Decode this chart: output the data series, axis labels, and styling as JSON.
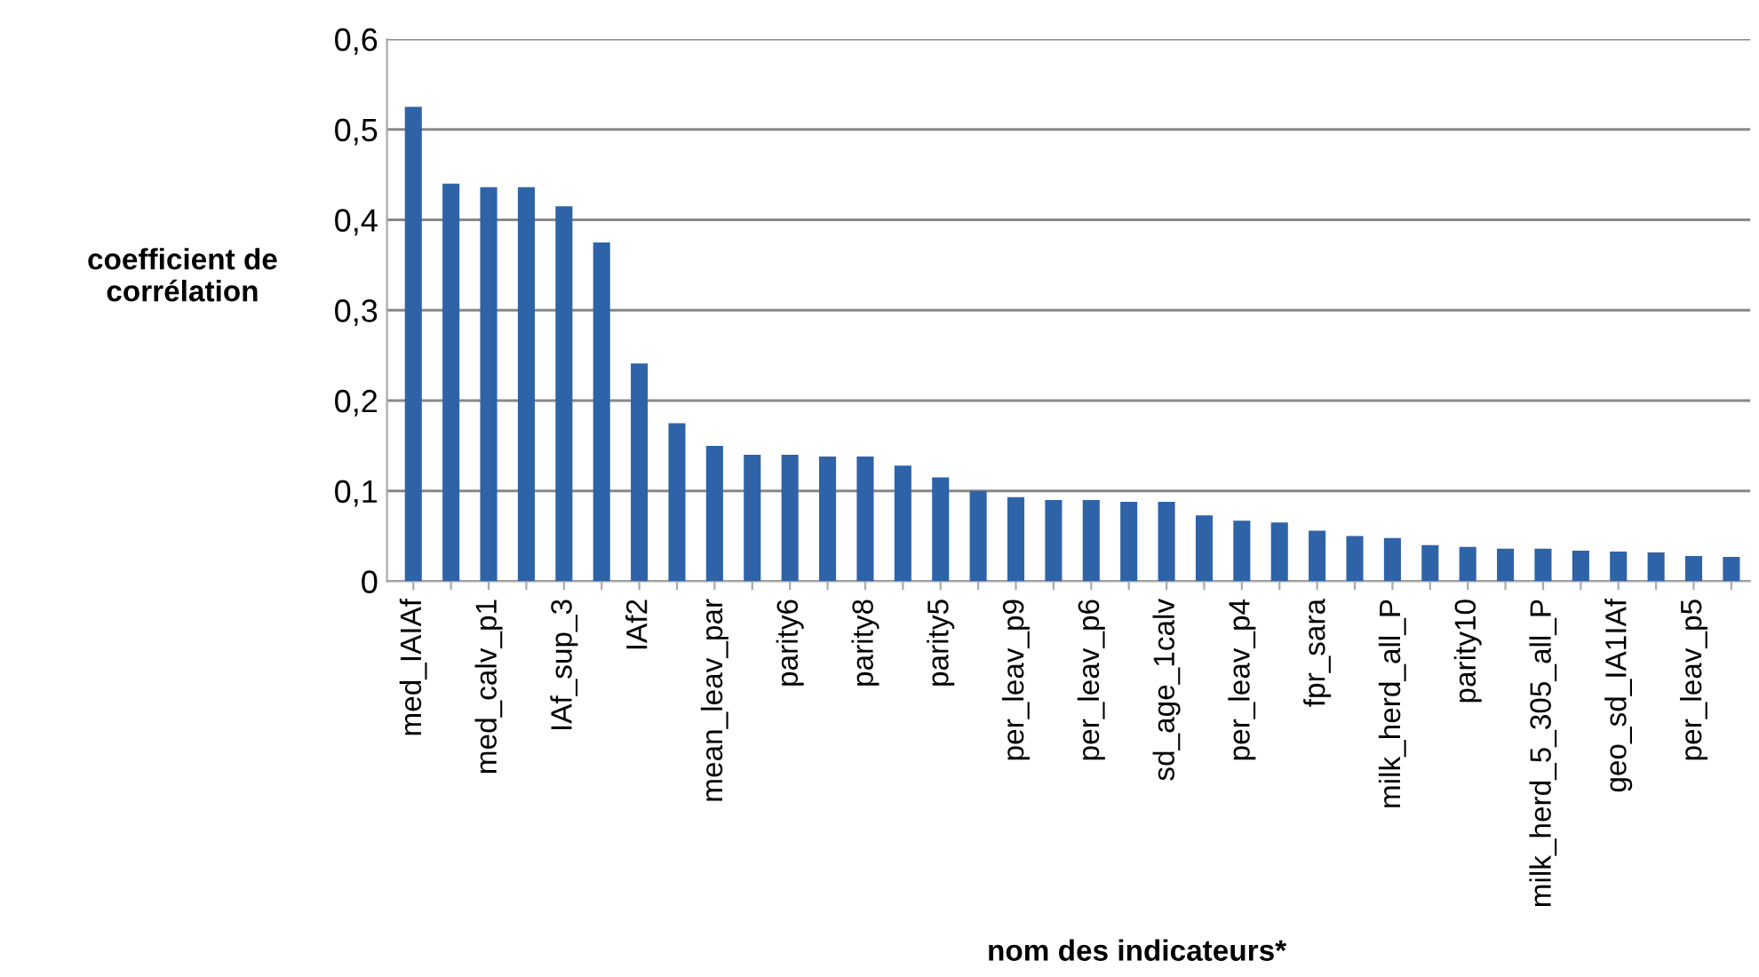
{
  "chart_data": {
    "type": "bar",
    "xlabel": "nom des indicateurs*",
    "ylabel": "coefficient de\ncorrélation",
    "categories": [
      "med_IAIAf",
      null,
      "med_calv_p1",
      null,
      "IAf_sup_3",
      null,
      "IAf2",
      null,
      "mean_leav_par",
      null,
      "parity6",
      null,
      "parity8",
      null,
      "parity5",
      null,
      "per_leav_p9",
      null,
      "per_leav_p6",
      null,
      "sd_age_1calv",
      null,
      "per_leav_p4",
      null,
      "fpr_sara",
      null,
      "milk_herd_all_P",
      null,
      "parity10",
      null,
      "milk_herd_5_305_all_P",
      null,
      "geo_sd_IA1IAf",
      null,
      "per_leav_p5",
      null
    ],
    "values": [
      0.525,
      0.44,
      0.436,
      0.436,
      0.415,
      0.375,
      0.241,
      0.175,
      0.15,
      0.14,
      0.14,
      0.138,
      0.138,
      0.128,
      0.115,
      0.1,
      0.093,
      0.09,
      0.09,
      0.088,
      0.088,
      0.073,
      0.067,
      0.065,
      0.056,
      0.05,
      0.048,
      0.04,
      0.038,
      0.036,
      0.036,
      0.034,
      0.033,
      0.032,
      0.028,
      0.027
    ],
    "color": "#2e63a8",
    "ylim": [
      0,
      0.6
    ],
    "yticks": [
      {
        "value": 0,
        "label": "0"
      },
      {
        "value": 0.1,
        "label": "0,1"
      },
      {
        "value": 0.2,
        "label": "0,2"
      },
      {
        "value": 0.3,
        "label": "0,3"
      },
      {
        "value": 0.4,
        "label": "0,4"
      },
      {
        "value": 0.5,
        "label": "0,5"
      },
      {
        "value": 0.6,
        "label": "0,6"
      }
    ],
    "grid": "y"
  }
}
